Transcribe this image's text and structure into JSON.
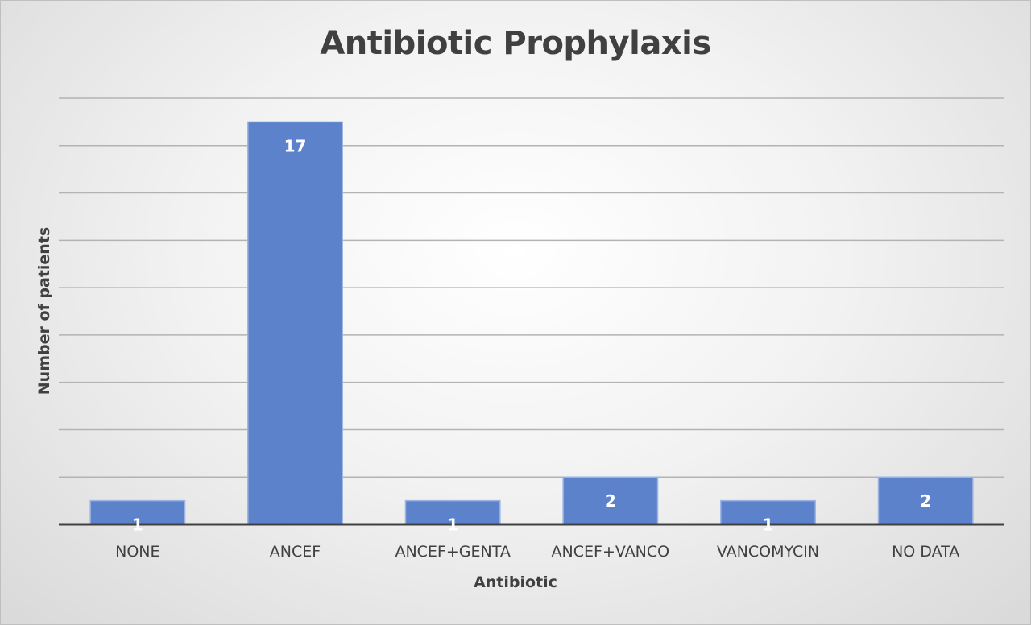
{
  "chart_data": {
    "type": "bar",
    "title": "Antibiotic Prophylaxis",
    "xlabel": "Antibiotic",
    "ylabel": "Number of patients",
    "categories": [
      "NONE",
      "ANCEF",
      "ANCEF+GENTA",
      "ANCEF+VANCO",
      "VANCOMYCIN",
      "NO DATA"
    ],
    "values": [
      1,
      17,
      1,
      2,
      1,
      2
    ],
    "data_labels": [
      "1",
      "17",
      "1",
      "2",
      "1",
      "2"
    ],
    "ylim": [
      0,
      18
    ],
    "y_tick_step": 2,
    "grid": true,
    "legend": "none",
    "colors": {
      "bar": "#5b82cb",
      "bar_edge": "#9db4e0",
      "gridline": "#b3b3b3",
      "axis": "#404040",
      "text": "#404040"
    }
  }
}
